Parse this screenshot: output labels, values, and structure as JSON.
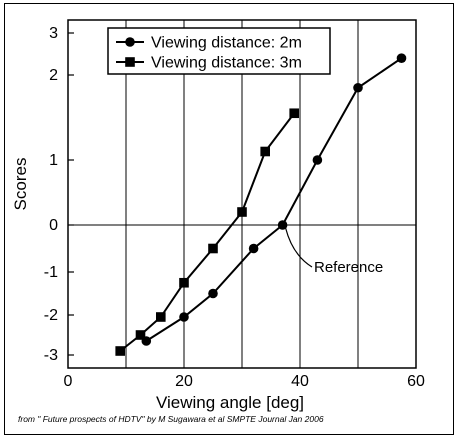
{
  "chart_data": {
    "type": "line",
    "xlabel": "Viewing angle [deg]",
    "ylabel": "Scores",
    "xlim": [
      0,
      60
    ],
    "ylim": [
      -3,
      3
    ],
    "x_ticks": [
      0,
      20,
      40,
      60
    ],
    "x_tick_labels": [
      "0",
      "20",
      "40",
      "60"
    ],
    "x_gridlines": [
      10,
      20,
      30,
      40,
      50
    ],
    "y_ticks": [
      -3,
      -2,
      -1,
      0,
      1,
      2,
      3
    ],
    "y_tick_labels": [
      "-3",
      "-2",
      "-1",
      "0",
      "1",
      "2",
      "3"
    ],
    "y_scale_note": "non-linear: outer units compressed",
    "y_pixel_map": {
      "values": [
        -3,
        -2,
        -1,
        0,
        1,
        2,
        3
      ],
      "screen": [
        355,
        315,
        272,
        225,
        160,
        75,
        33
      ]
    },
    "grid": "vertical",
    "legend_position": "top-left",
    "series": [
      {
        "name": "Viewing distance: 2m",
        "marker": "circle",
        "x": [
          13.5,
          20,
          25,
          32,
          37,
          43,
          50,
          57.5
        ],
        "y": [
          -2.65,
          -2.05,
          -1.5,
          -0.5,
          0,
          1,
          1.85,
          2.4
        ]
      },
      {
        "name": "Viewing distance: 3m",
        "marker": "square",
        "x": [
          9,
          12.5,
          16,
          20,
          25,
          30,
          34,
          39
        ],
        "y": [
          -2.9,
          -2.5,
          -2.05,
          -1.25,
          -0.5,
          0.2,
          1.1,
          1.55
        ]
      }
    ],
    "annotations": [
      {
        "text": "Reference",
        "x": 37,
        "y": 0
      }
    ]
  },
  "source_note": "from \" Future prospects of HDTV\" by M Sugawara et al  SMPTE Journal Jan 2006",
  "colors": {
    "line": "#000000",
    "background": "#ffffff"
  }
}
